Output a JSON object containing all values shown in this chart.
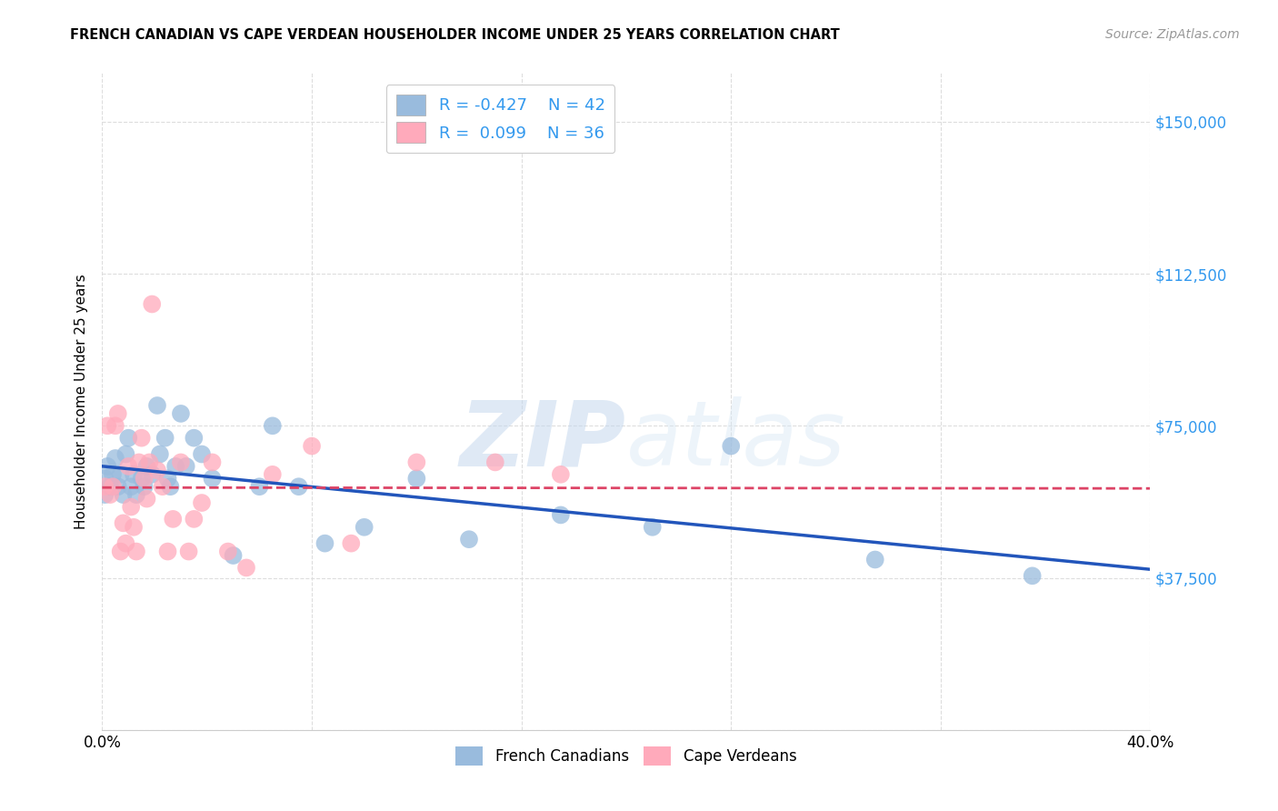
{
  "title": "FRENCH CANADIAN VS CAPE VERDEAN HOUSEHOLDER INCOME UNDER 25 YEARS CORRELATION CHART",
  "source": "Source: ZipAtlas.com",
  "ylabel": "Householder Income Under 25 years",
  "yticks": [
    0,
    37500,
    75000,
    112500,
    150000
  ],
  "ytick_labels": [
    "",
    "$37,500",
    "$75,000",
    "$112,500",
    "$150,000"
  ],
  "xlim": [
    0.0,
    0.4
  ],
  "ylim": [
    0,
    162000
  ],
  "watermark_zip": "ZIP",
  "watermark_atlas": "atlas",
  "legend_r1": "R = -0.427",
  "legend_n1": "N = 42",
  "legend_r2": "R =  0.099",
  "legend_n2": "N = 36",
  "blue_color": "#99BBDD",
  "pink_color": "#FFAABB",
  "line_blue": "#2255BB",
  "line_pink": "#DD4466",
  "fc_label": "French Canadians",
  "cv_label": "Cape Verdeans",
  "french_canadians_x": [
    0.001,
    0.001,
    0.002,
    0.003,
    0.004,
    0.005,
    0.006,
    0.007,
    0.008,
    0.009,
    0.01,
    0.011,
    0.012,
    0.013,
    0.015,
    0.016,
    0.017,
    0.019,
    0.021,
    0.022,
    0.024,
    0.025,
    0.026,
    0.028,
    0.03,
    0.032,
    0.035,
    0.038,
    0.042,
    0.05,
    0.06,
    0.065,
    0.075,
    0.085,
    0.1,
    0.12,
    0.14,
    0.175,
    0.21,
    0.24,
    0.295,
    0.355
  ],
  "french_canadians_y": [
    62000,
    58000,
    65000,
    60000,
    63000,
    67000,
    60000,
    63000,
    58000,
    68000,
    72000,
    60000,
    63000,
    58000,
    62000,
    60000,
    65000,
    63000,
    80000,
    68000,
    72000,
    62000,
    60000,
    65000,
    78000,
    65000,
    72000,
    68000,
    62000,
    43000,
    60000,
    75000,
    60000,
    46000,
    50000,
    62000,
    47000,
    53000,
    50000,
    70000,
    42000,
    38000
  ],
  "cape_verdeans_x": [
    0.001,
    0.002,
    0.003,
    0.004,
    0.005,
    0.006,
    0.007,
    0.008,
    0.009,
    0.01,
    0.011,
    0.012,
    0.013,
    0.014,
    0.015,
    0.016,
    0.017,
    0.018,
    0.019,
    0.021,
    0.023,
    0.025,
    0.027,
    0.03,
    0.033,
    0.035,
    0.038,
    0.042,
    0.048,
    0.055,
    0.065,
    0.08,
    0.095,
    0.12,
    0.15,
    0.175
  ],
  "cape_verdeans_y": [
    60000,
    75000,
    58000,
    60000,
    75000,
    78000,
    44000,
    51000,
    46000,
    65000,
    55000,
    50000,
    44000,
    66000,
    72000,
    62000,
    57000,
    66000,
    105000,
    64000,
    60000,
    44000,
    52000,
    66000,
    44000,
    52000,
    56000,
    66000,
    44000,
    40000,
    63000,
    70000,
    46000,
    66000,
    66000,
    63000
  ]
}
